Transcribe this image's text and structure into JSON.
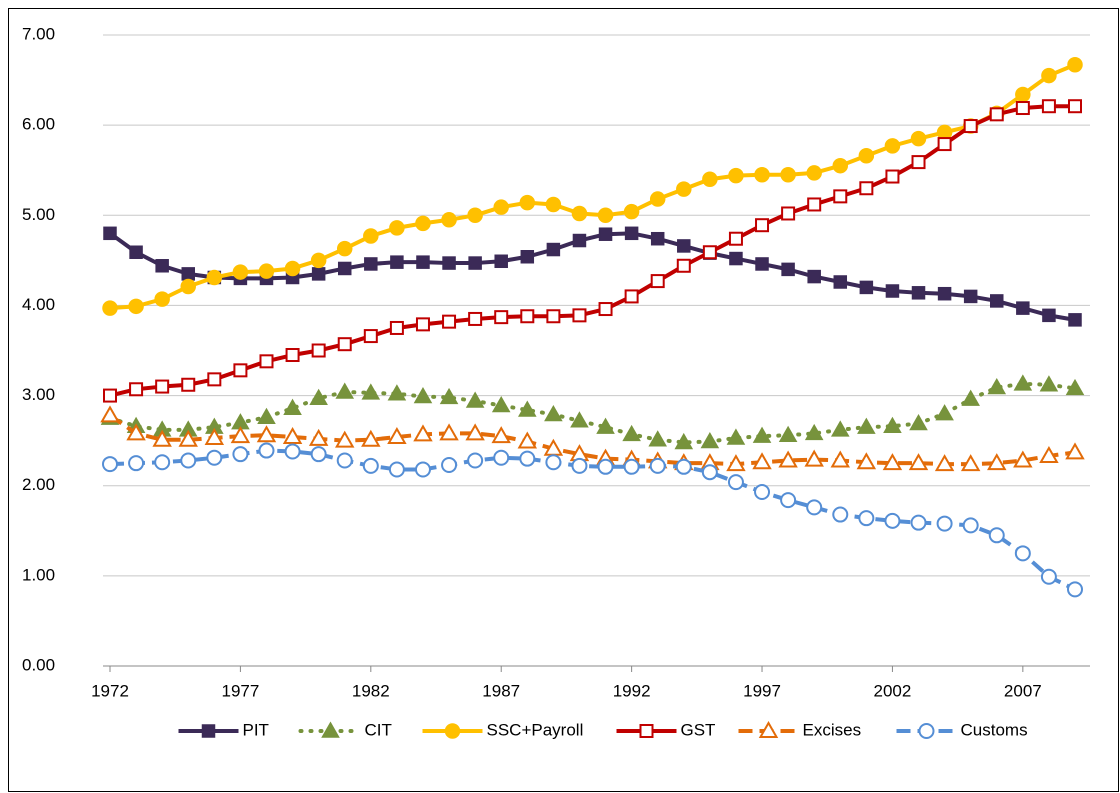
{
  "chart_data": {
    "type": "line",
    "x": [
      1972,
      1973,
      1974,
      1975,
      1976,
      1977,
      1978,
      1979,
      1980,
      1981,
      1982,
      1983,
      1984,
      1985,
      1986,
      1987,
      1988,
      1989,
      1990,
      1991,
      1992,
      1993,
      1994,
      1995,
      1996,
      1997,
      1998,
      1999,
      2000,
      2001,
      2002,
      2003,
      2004,
      2005,
      2006,
      2007,
      2008,
      2009
    ],
    "xlim": [
      1972,
      2009
    ],
    "xticks": [
      1972,
      1977,
      1982,
      1987,
      1992,
      1997,
      2002,
      2007
    ],
    "ylim": [
      0,
      7
    ],
    "yticks": [
      {
        "value": 0,
        "label": "0.00"
      },
      {
        "value": 1,
        "label": "1.00"
      },
      {
        "value": 2,
        "label": "2.00"
      },
      {
        "value": 3,
        "label": "3.00"
      },
      {
        "value": 4,
        "label": "4.00"
      },
      {
        "value": 5,
        "label": "5.00"
      },
      {
        "value": 6,
        "label": "6.00"
      },
      {
        "value": 7,
        "label": "7.00"
      }
    ],
    "grid": true,
    "legend": "bottom",
    "series": [
      {
        "name": "PIT",
        "color": "#3b2a57",
        "values": [
          4.8,
          4.59,
          4.44,
          4.35,
          4.31,
          4.3,
          4.3,
          4.31,
          4.35,
          4.41,
          4.46,
          4.48,
          4.48,
          4.47,
          4.47,
          4.49,
          4.54,
          4.62,
          4.72,
          4.79,
          4.8,
          4.74,
          4.66,
          4.58,
          4.52,
          4.46,
          4.4,
          4.32,
          4.26,
          4.2,
          4.16,
          4.14,
          4.13,
          4.1,
          4.05,
          3.97,
          3.89,
          3.84
        ]
      },
      {
        "name": "CIT",
        "color": "#77933c",
        "values": [
          2.75,
          2.66,
          2.62,
          2.62,
          2.65,
          2.7,
          2.76,
          2.86,
          2.97,
          3.04,
          3.03,
          3.02,
          2.99,
          2.98,
          2.94,
          2.89,
          2.84,
          2.79,
          2.72,
          2.65,
          2.57,
          2.51,
          2.48,
          2.49,
          2.53,
          2.55,
          2.56,
          2.58,
          2.62,
          2.65,
          2.66,
          2.69,
          2.8,
          2.96,
          3.09,
          3.13,
          3.12,
          3.08
        ]
      },
      {
        "name": "SSC+Payroll",
        "color": "#ffc000",
        "values": [
          3.97,
          3.99,
          4.07,
          4.21,
          4.31,
          4.37,
          4.38,
          4.41,
          4.5,
          4.63,
          4.77,
          4.86,
          4.91,
          4.95,
          5.0,
          5.09,
          5.14,
          5.12,
          5.02,
          5.0,
          5.04,
          5.18,
          5.29,
          5.4,
          5.44,
          5.45,
          5.45,
          5.47,
          5.55,
          5.66,
          5.77,
          5.85,
          5.92,
          5.99,
          6.13,
          6.34,
          6.55,
          6.67
        ]
      },
      {
        "name": "GST",
        "color": "#c00000",
        "values": [
          3.0,
          3.07,
          3.1,
          3.12,
          3.18,
          3.28,
          3.38,
          3.45,
          3.5,
          3.57,
          3.66,
          3.75,
          3.79,
          3.82,
          3.85,
          3.87,
          3.88,
          3.88,
          3.89,
          3.96,
          4.1,
          4.27,
          4.44,
          4.59,
          4.74,
          4.89,
          5.02,
          5.12,
          5.21,
          5.3,
          5.43,
          5.59,
          5.79,
          5.99,
          6.12,
          6.19,
          6.21,
          6.21
        ]
      },
      {
        "name": "Excises",
        "color": "#e36c09",
        "values": [
          2.78,
          2.58,
          2.51,
          2.51,
          2.53,
          2.55,
          2.56,
          2.54,
          2.52,
          2.5,
          2.51,
          2.54,
          2.57,
          2.58,
          2.58,
          2.55,
          2.49,
          2.41,
          2.35,
          2.3,
          2.29,
          2.27,
          2.25,
          2.25,
          2.24,
          2.26,
          2.28,
          2.29,
          2.28,
          2.26,
          2.25,
          2.25,
          2.24,
          2.24,
          2.25,
          2.28,
          2.33,
          2.37
        ]
      },
      {
        "name": "Customs",
        "color": "#558ed5",
        "values": [
          2.24,
          2.25,
          2.26,
          2.28,
          2.31,
          2.35,
          2.39,
          2.38,
          2.35,
          2.28,
          2.22,
          2.18,
          2.18,
          2.23,
          2.28,
          2.31,
          2.3,
          2.26,
          2.22,
          2.21,
          2.21,
          2.22,
          2.21,
          2.15,
          2.04,
          1.93,
          1.84,
          1.76,
          1.68,
          1.64,
          1.61,
          1.59,
          1.58,
          1.56,
          1.45,
          1.25,
          0.99,
          0.85
        ]
      }
    ]
  }
}
